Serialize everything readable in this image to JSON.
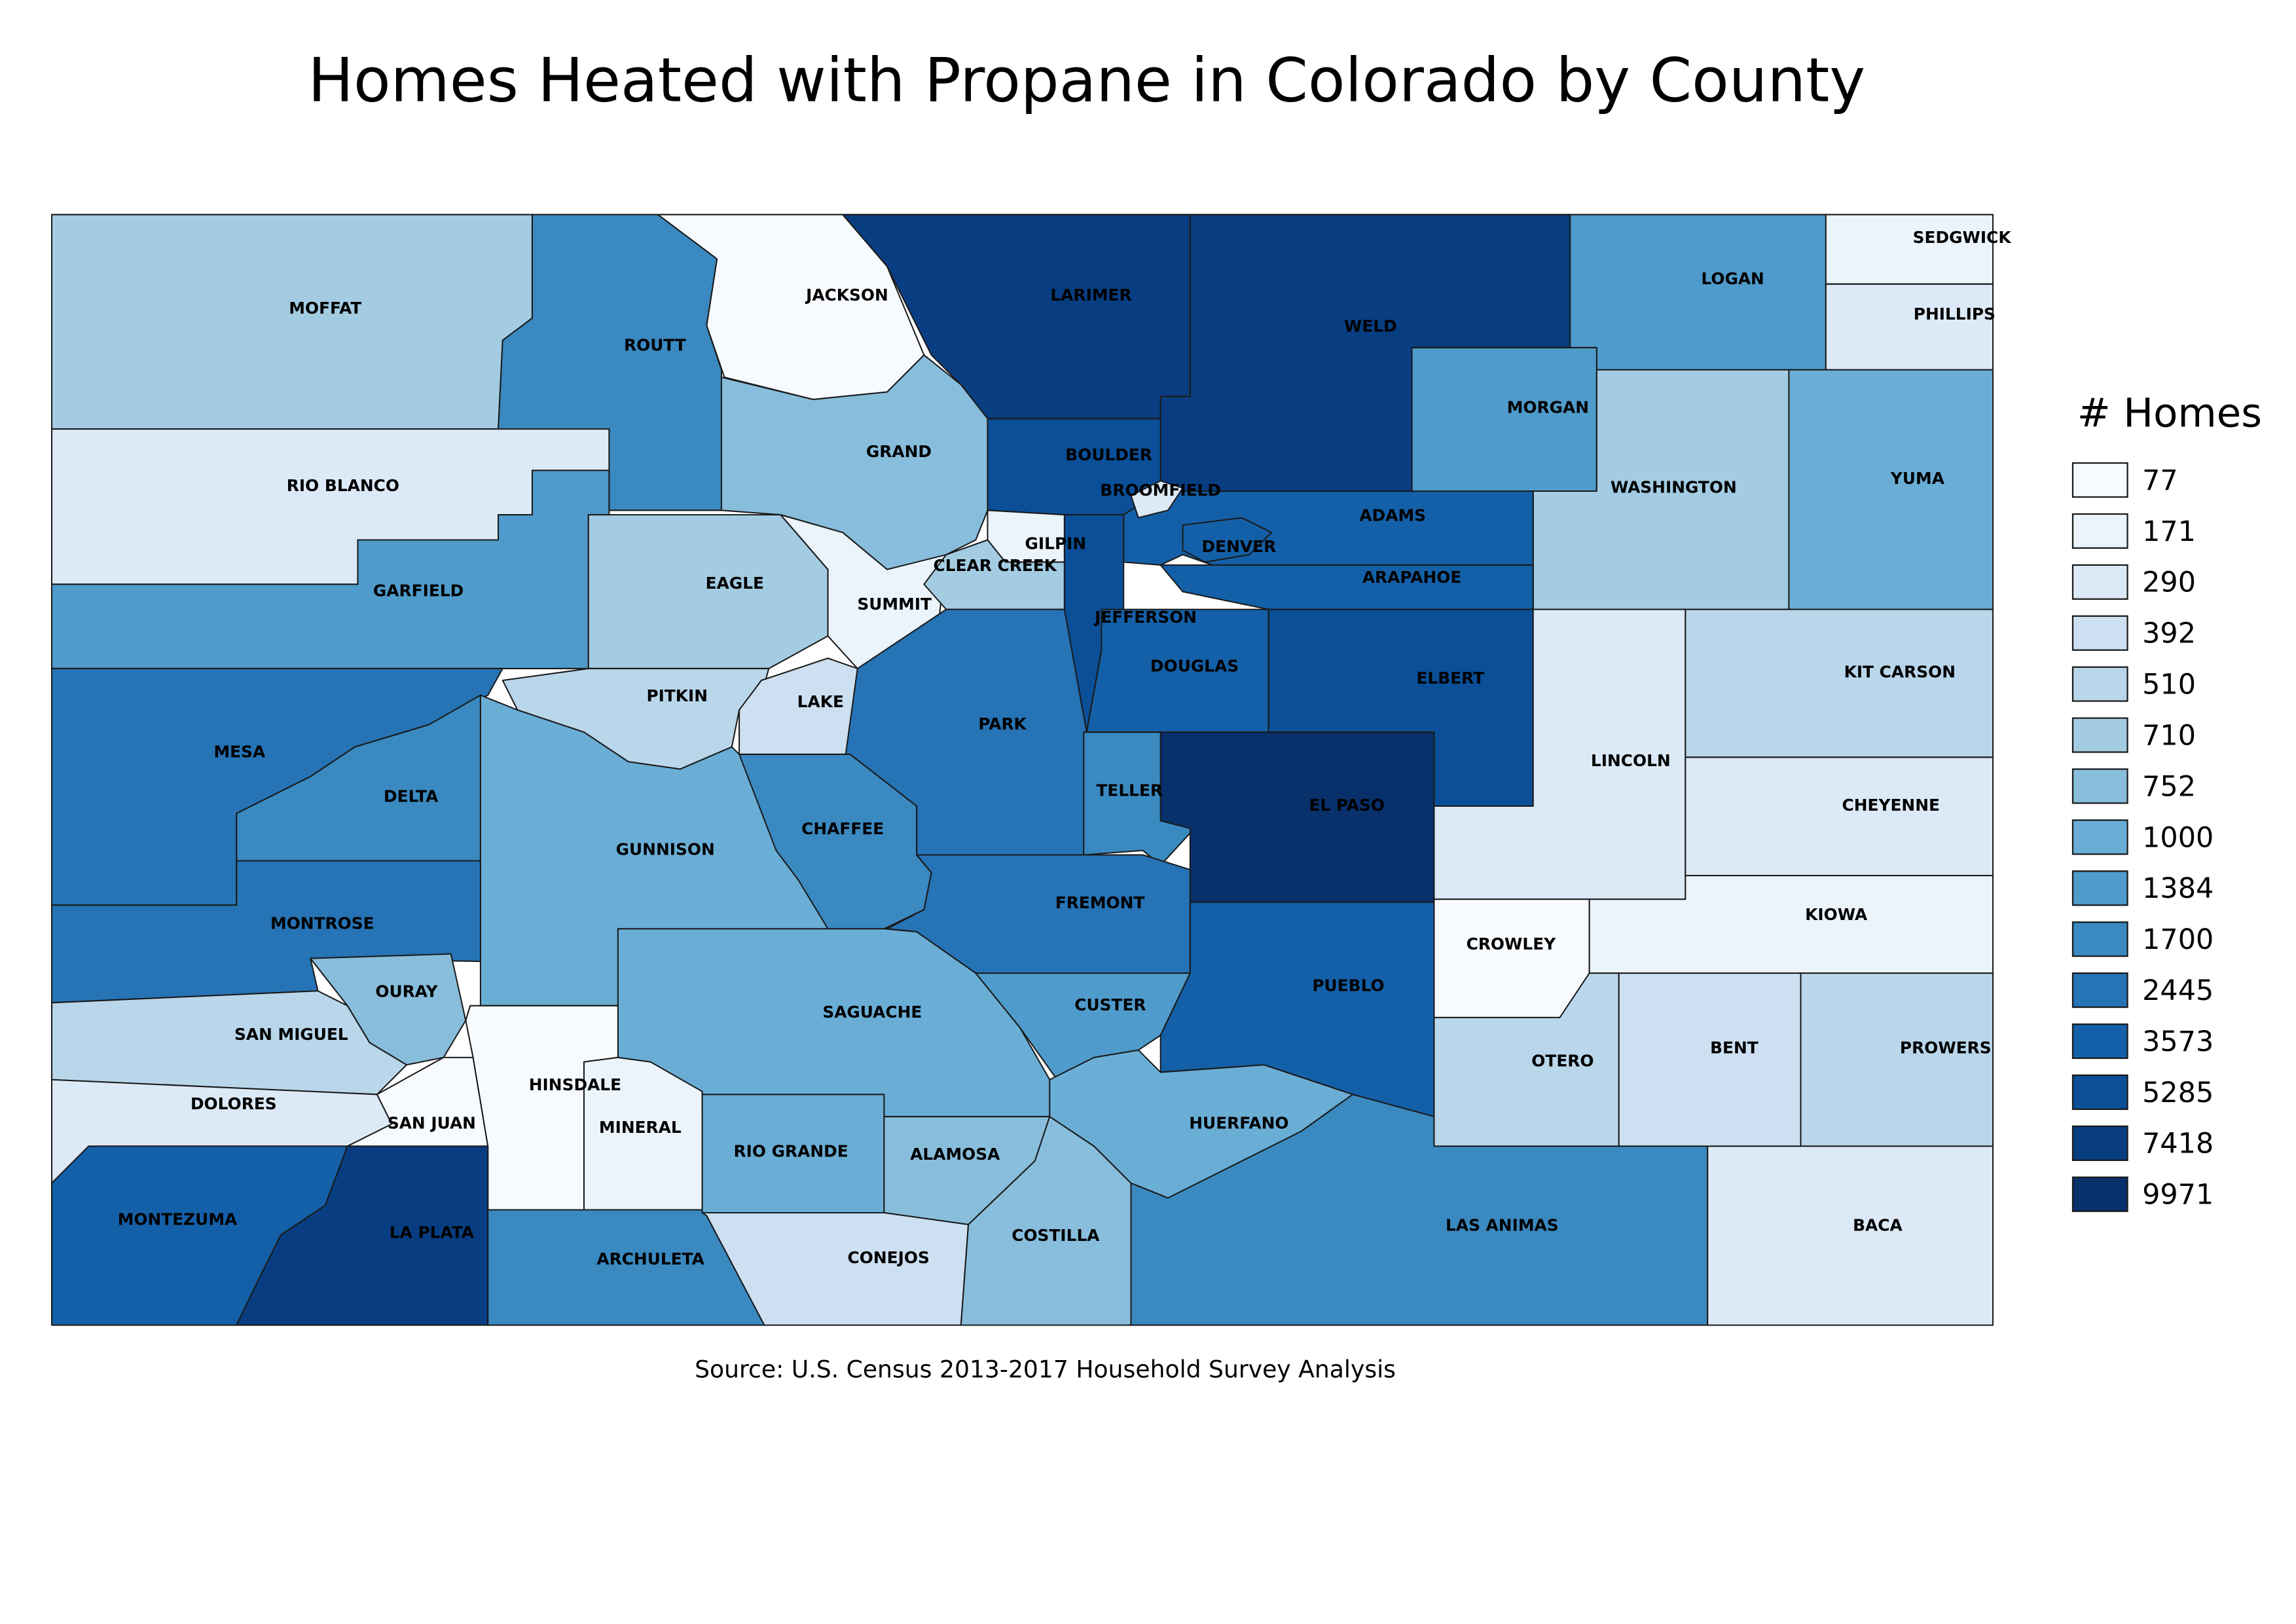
{
  "title": "Homes Heated with Propane in Colorado by County",
  "source": "Source: U.S. Census 2013-2017 Household Survey Analysis",
  "legend": {
    "title": "# Homes",
    "items": [
      {
        "label": 77,
        "color": "#f7fbff"
      },
      {
        "label": 171,
        "color": "#ebf3fb"
      },
      {
        "label": 290,
        "color": "#dce9f6"
      },
      {
        "label": 392,
        "color": "#cde0f1"
      },
      {
        "label": 510,
        "color": "#b9d6ea"
      },
      {
        "label": 710,
        "color": "#a3cce3"
      },
      {
        "label": 752,
        "color": "#88bedc"
      },
      {
        "label": 1000,
        "color": "#6aaed6"
      },
      {
        "label": 1384,
        "color": "#4f9bcb"
      },
      {
        "label": 1700,
        "color": "#3a89c1"
      },
      {
        "label": 2445,
        "color": "#2673b5"
      },
      {
        "label": 3573,
        "color": "#1460a8"
      },
      {
        "label": 5285,
        "color": "#0a4f97"
      },
      {
        "label": 7418,
        "color": "#083e81"
      },
      {
        "label": 9971,
        "color": "#08306b"
      }
    ]
  },
  "counties": [
    {
      "name": "MOFFAT",
      "color": "#a3cce3"
    },
    {
      "name": "ROUTT",
      "color": "#3a89c1"
    },
    {
      "name": "JACKSON",
      "color": "#f7fbff"
    },
    {
      "name": "LARIMER",
      "color": "#083e81"
    },
    {
      "name": "WELD",
      "color": "#083e81"
    },
    {
      "name": "LOGAN",
      "color": "#4f9bcb"
    },
    {
      "name": "SEDGWICK",
      "color": "#ebf3fb"
    },
    {
      "name": "PHILLIPS",
      "color": "#dce9f6"
    },
    {
      "name": "MORGAN",
      "color": "#4f9bcb"
    },
    {
      "name": "WASHINGTON",
      "color": "#a3cce3"
    },
    {
      "name": "YUMA",
      "color": "#6aaed6"
    },
    {
      "name": "RIO BLANCO",
      "color": "#dce9f6"
    },
    {
      "name": "GARFIELD",
      "color": "#4f9bcb"
    },
    {
      "name": "GRAND",
      "color": "#88bedc"
    },
    {
      "name": "BOULDER",
      "color": "#0a4f97"
    },
    {
      "name": "EAGLE",
      "color": "#a3cce3"
    },
    {
      "name": "SUMMIT",
      "color": "#ebf3fb"
    },
    {
      "name": "GILPIN",
      "color": "#ebf3fb"
    },
    {
      "name": "CLEAR CREEK",
      "color": "#a3cce3"
    },
    {
      "name": "ADAMS",
      "color": "#1460a8"
    },
    {
      "name": "ARAPAHOE",
      "color": "#1460a8"
    },
    {
      "name": "DENVER",
      "color": "#1460a8"
    },
    {
      "name": "BROOMFIELD",
      "color": "#dce9f6"
    },
    {
      "name": "JEFFERSON",
      "color": "#0a4f97"
    },
    {
      "name": "DOUGLAS",
      "color": "#1460a8"
    },
    {
      "name": "ELBERT",
      "color": "#0a4f97"
    },
    {
      "name": "LINCOLN",
      "color": "#dce9f6"
    },
    {
      "name": "KIT CARSON",
      "color": "#b9d6ea"
    },
    {
      "name": "CHEYENNE",
      "color": "#dce9f6"
    },
    {
      "name": "KIOWA",
      "color": "#ebf3fb"
    },
    {
      "name": "CROWLEY",
      "color": "#f7fbff"
    },
    {
      "name": "MESA",
      "color": "#2673b5"
    },
    {
      "name": "PITKIN",
      "color": "#b9d6ea"
    },
    {
      "name": "LAKE",
      "color": "#cde0f1"
    },
    {
      "name": "PARK",
      "color": "#2673b5"
    },
    {
      "name": "DELTA",
      "color": "#3a89c1"
    },
    {
      "name": "GUNNISON",
      "color": "#6aaed6"
    },
    {
      "name": "CHAFFEE",
      "color": "#3a89c1"
    },
    {
      "name": "TELLER",
      "color": "#3a89c1"
    },
    {
      "name": "EL PASO",
      "color": "#08306b"
    },
    {
      "name": "FREMONT",
      "color": "#2673b5"
    },
    {
      "name": "MONTROSE",
      "color": "#2673b5"
    },
    {
      "name": "OURAY",
      "color": "#88bedc"
    },
    {
      "name": "SAN MIGUEL",
      "color": "#b9d6ea"
    },
    {
      "name": "DOLORES",
      "color": "#dce9f6"
    },
    {
      "name": "SAN JUAN",
      "color": "#f7fbff"
    },
    {
      "name": "HINSDALE",
      "color": "#f7fbff"
    },
    {
      "name": "MINERAL",
      "color": "#ebf3fb"
    },
    {
      "name": "SAGUACHE",
      "color": "#6aaed6"
    },
    {
      "name": "CUSTER",
      "color": "#4f9bcb"
    },
    {
      "name": "PUEBLO",
      "color": "#1460a8"
    },
    {
      "name": "OTERO",
      "color": "#b9d6ea"
    },
    {
      "name": "BENT",
      "color": "#cde0f1"
    },
    {
      "name": "PROWERS",
      "color": "#b9d6ea"
    },
    {
      "name": "MONTEZUMA",
      "color": "#1460a8"
    },
    {
      "name": "LA PLATA",
      "color": "#083e81"
    },
    {
      "name": "ARCHULETA",
      "color": "#3a89c1"
    },
    {
      "name": "RIO GRANDE",
      "color": "#6aaed6"
    },
    {
      "name": "ALAMOSA",
      "color": "#88bedc"
    },
    {
      "name": "CONEJOS",
      "color": "#cde0f1"
    },
    {
      "name": "COSTILLA",
      "color": "#88bedc"
    },
    {
      "name": "HUERFANO",
      "color": "#6aaed6"
    },
    {
      "name": "LAS ANIMAS",
      "color": "#3a89c1"
    },
    {
      "name": "BACA",
      "color": "#dce9f6"
    }
  ]
}
